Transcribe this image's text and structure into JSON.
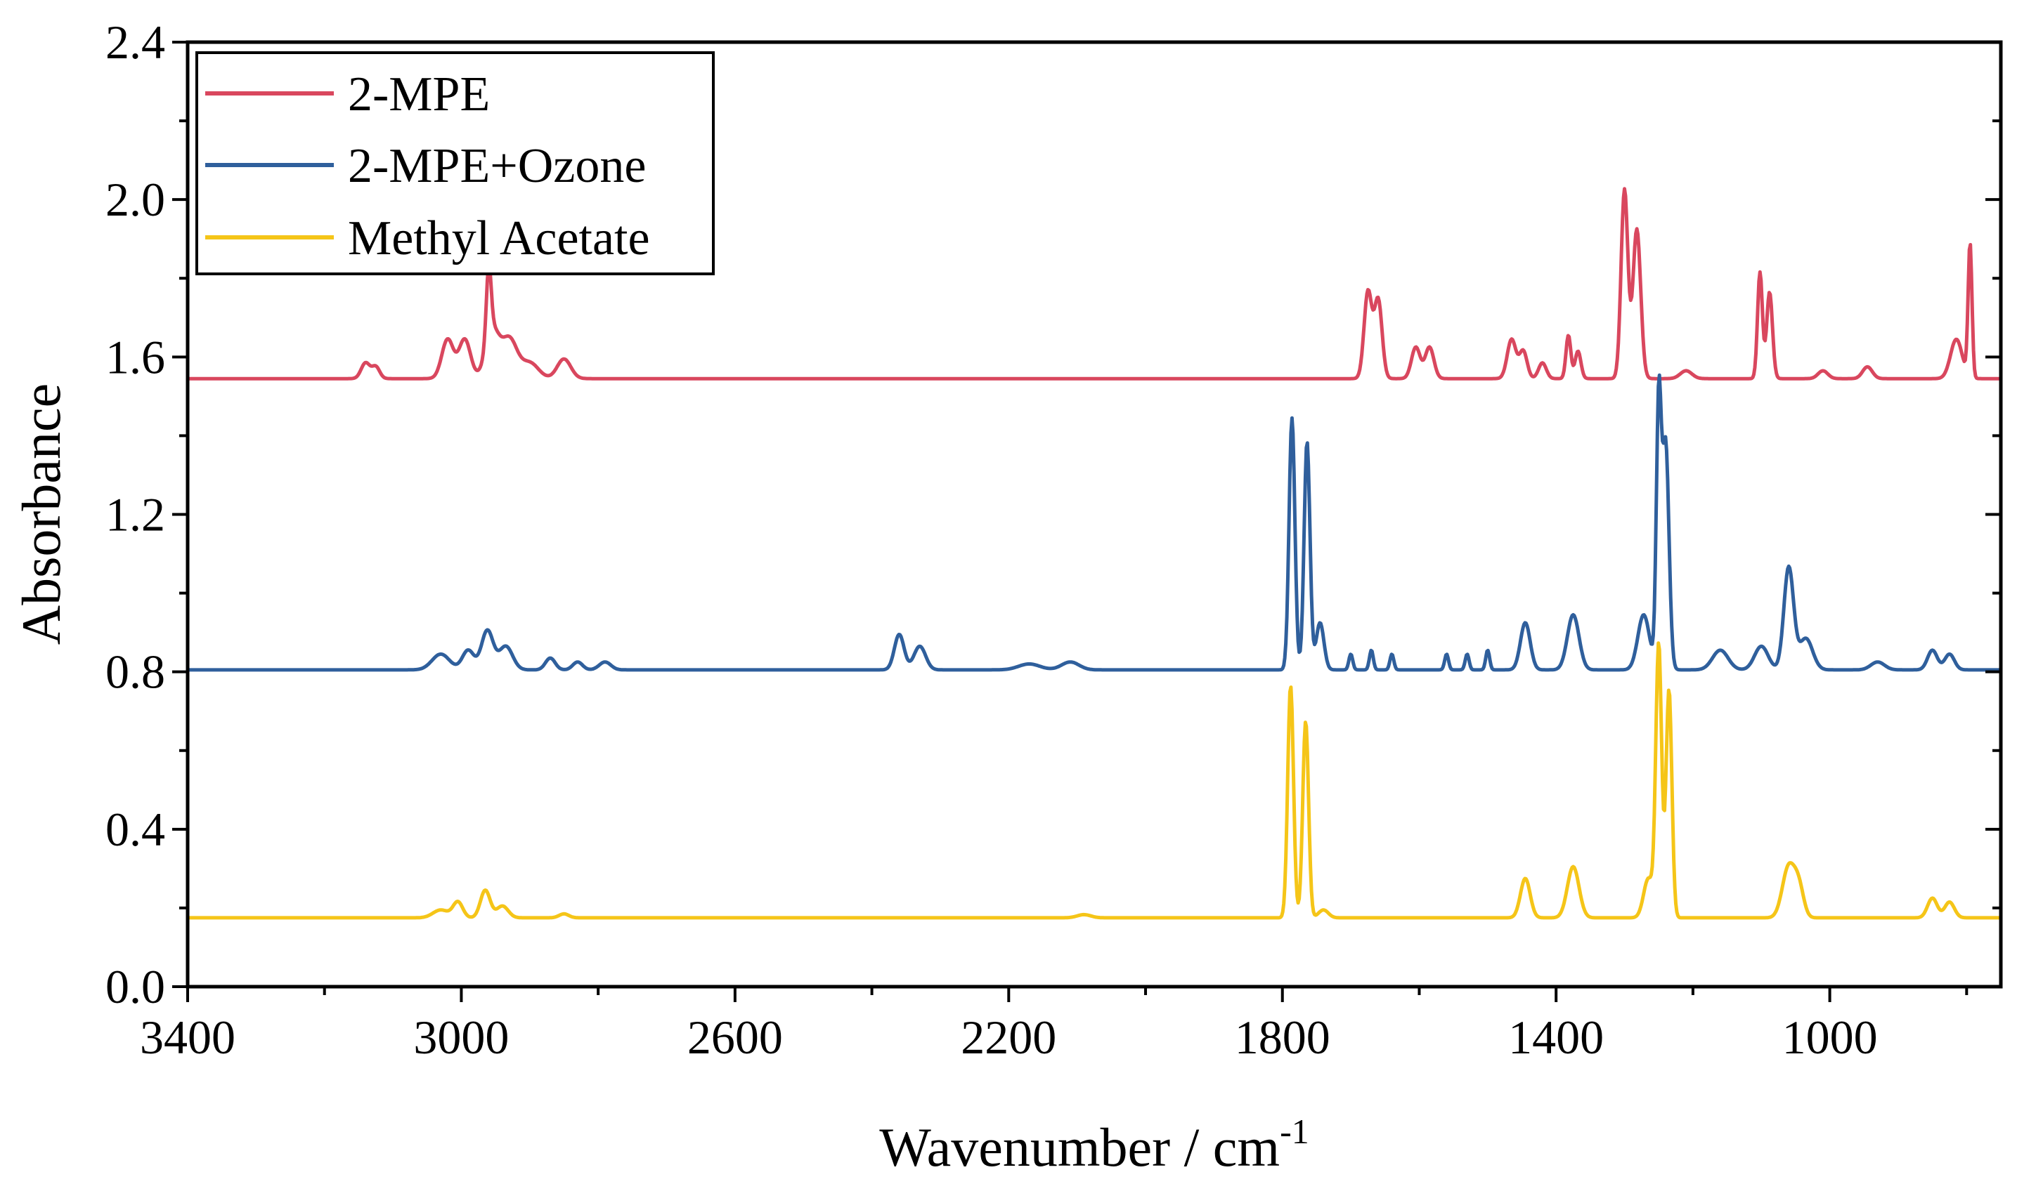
{
  "chart_data": {
    "type": "line",
    "xlabel": "Wavenumber / cm",
    "xlabel_sup": "-1",
    "ylabel": "Absorbance",
    "xlim": [
      3400,
      750
    ],
    "ylim": [
      0.0,
      2.4
    ],
    "x_reversed": true,
    "x_ticks": [
      3400,
      3000,
      2600,
      2200,
      1800,
      1400,
      1000
    ],
    "x_tick_labels": [
      "3400",
      "3000",
      "2600",
      "2200",
      "1800",
      "1400",
      "1000"
    ],
    "y_ticks": [
      0.0,
      0.4,
      0.8,
      1.2,
      1.6,
      2.0,
      2.4
    ],
    "y_tick_labels": [
      "0.0",
      "0.4",
      "0.8",
      "1.2",
      "1.6",
      "2.0",
      "2.4"
    ],
    "grid": false,
    "legend_position": "top-left",
    "series": [
      {
        "name": "2-MPE",
        "color": "#d9475e",
        "baseline": 1.545,
        "peaks": [
          [
            3140,
            0.04,
            9
          ],
          [
            3125,
            0.03,
            8
          ],
          [
            3020,
            0.1,
            12
          ],
          [
            2995,
            0.1,
            12
          ],
          [
            2960,
            0.18,
            5
          ],
          [
            2955,
            0.12,
            14
          ],
          [
            2930,
            0.1,
            16
          ],
          [
            2900,
            0.04,
            18
          ],
          [
            2850,
            0.05,
            14
          ],
          [
            1675,
            0.22,
            8
          ],
          [
            1660,
            0.2,
            8
          ],
          [
            1605,
            0.08,
            9
          ],
          [
            1585,
            0.08,
            9
          ],
          [
            1465,
            0.1,
            9
          ],
          [
            1448,
            0.07,
            8
          ],
          [
            1420,
            0.04,
            8
          ],
          [
            1382,
            0.11,
            5
          ],
          [
            1368,
            0.07,
            6
          ],
          [
            1300,
            0.48,
            7
          ],
          [
            1282,
            0.38,
            8
          ],
          [
            1210,
            0.02,
            12
          ],
          [
            1102,
            0.27,
            5
          ],
          [
            1088,
            0.22,
            6
          ],
          [
            1010,
            0.02,
            10
          ],
          [
            945,
            0.03,
            10
          ],
          [
            815,
            0.1,
            12
          ],
          [
            795,
            0.34,
            4
          ]
        ]
      },
      {
        "name": "2-MPE+Ozone",
        "color": "#2f5f9c",
        "baseline": 0.805,
        "peaks": [
          [
            3030,
            0.04,
            18
          ],
          [
            2990,
            0.05,
            12
          ],
          [
            2962,
            0.1,
            12
          ],
          [
            2935,
            0.06,
            14
          ],
          [
            2870,
            0.03,
            10
          ],
          [
            2830,
            0.02,
            10
          ],
          [
            2790,
            0.02,
            12
          ],
          [
            2360,
            0.09,
            10
          ],
          [
            2330,
            0.06,
            12
          ],
          [
            2170,
            0.015,
            22
          ],
          [
            2110,
            0.02,
            18
          ],
          [
            1786,
            0.64,
            6
          ],
          [
            1764,
            0.58,
            6
          ],
          [
            1745,
            0.12,
            8
          ],
          [
            1700,
            0.04,
            4
          ],
          [
            1670,
            0.05,
            4
          ],
          [
            1640,
            0.04,
            4
          ],
          [
            1560,
            0.04,
            4
          ],
          [
            1530,
            0.04,
            4
          ],
          [
            1500,
            0.05,
            4
          ],
          [
            1445,
            0.12,
            10
          ],
          [
            1375,
            0.14,
            12
          ],
          [
            1272,
            0.14,
            12
          ],
          [
            1250,
            0.66,
            5
          ],
          [
            1240,
            0.58,
            7
          ],
          [
            1160,
            0.05,
            16
          ],
          [
            1100,
            0.06,
            14
          ],
          [
            1060,
            0.26,
            10
          ],
          [
            1035,
            0.08,
            14
          ],
          [
            930,
            0.02,
            14
          ],
          [
            850,
            0.05,
            10
          ],
          [
            825,
            0.04,
            10
          ]
        ]
      },
      {
        "name": "Methyl Acetate",
        "color": "#f5c518",
        "baseline": 0.175,
        "peaks": [
          [
            3030,
            0.02,
            16
          ],
          [
            3005,
            0.04,
            10
          ],
          [
            2965,
            0.07,
            10
          ],
          [
            2940,
            0.03,
            12
          ],
          [
            2850,
            0.01,
            10
          ],
          [
            2090,
            0.008,
            14
          ],
          [
            1788,
            0.59,
            6
          ],
          [
            1766,
            0.5,
            6
          ],
          [
            1740,
            0.02,
            10
          ],
          [
            1445,
            0.1,
            10
          ],
          [
            1375,
            0.13,
            12
          ],
          [
            1265,
            0.1,
            10
          ],
          [
            1250,
            0.69,
            6
          ],
          [
            1235,
            0.58,
            6
          ],
          [
            1060,
            0.13,
            13
          ],
          [
            1045,
            0.07,
            10
          ],
          [
            850,
            0.05,
            10
          ],
          [
            825,
            0.04,
            10
          ]
        ]
      }
    ]
  }
}
